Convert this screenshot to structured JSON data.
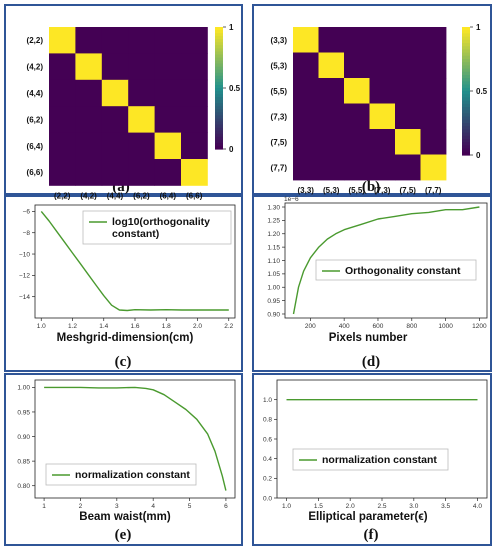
{
  "panel_labels": [
    "(a)",
    "(b)",
    "(c)",
    "(d)",
    "(e)",
    "(f)"
  ],
  "colors": {
    "frame": "#2f5597",
    "line": "#4a9a2f",
    "low": "#440154",
    "high": "#fde725",
    "mid": "#21918c"
  },
  "chart_data": [
    {
      "type": "heatmap",
      "panel": "a",
      "categories": [
        "(2,2)",
        "(4,2)",
        "(4,4)",
        "(6,2)",
        "(6,4)",
        "(6,6)"
      ],
      "values": [
        [
          1,
          0,
          0,
          0,
          0,
          0
        ],
        [
          0,
          1,
          0,
          0,
          0,
          0
        ],
        [
          0,
          0,
          1,
          0,
          0,
          0
        ],
        [
          0,
          0,
          0,
          1,
          0,
          0
        ],
        [
          0,
          0,
          0,
          0,
          1,
          0
        ],
        [
          0,
          0,
          0,
          0,
          0,
          1
        ]
      ],
      "colorbar_ticks": [
        {
          "v": 1,
          "label": "1"
        },
        {
          "v": 0.5,
          "label": "0.5"
        },
        {
          "v": 0,
          "label": "0"
        }
      ],
      "vmin": 0,
      "vmax": 1
    },
    {
      "type": "heatmap",
      "panel": "b",
      "categories": [
        "(3,3)",
        "(5,3)",
        "(5,5)",
        "(7,3)",
        "(7,5)",
        "(7,7)"
      ],
      "values": [
        [
          1,
          0,
          0,
          0,
          0,
          0
        ],
        [
          0,
          1,
          0,
          0,
          0,
          0
        ],
        [
          0,
          0,
          1,
          0,
          0,
          0
        ],
        [
          0,
          0,
          0,
          1,
          0,
          0
        ],
        [
          0,
          0,
          0,
          0,
          1,
          0
        ],
        [
          0,
          0,
          0,
          0,
          0,
          1
        ]
      ],
      "colorbar_ticks": [
        {
          "v": 1,
          "label": "1"
        },
        {
          "v": 0.5,
          "label": "0.5"
        },
        {
          "v": 0,
          "label": "0"
        }
      ],
      "vmin": 0,
      "vmax": 1
    },
    {
      "type": "line",
      "panel": "c",
      "xlabel": "Meshgrid-dimension(cm)",
      "xlim": [
        0.96,
        2.24
      ],
      "ylim": [
        -16.0,
        -5.4
      ],
      "xticks": [
        {
          "v": 1.0,
          "label": "1.0"
        },
        {
          "v": 1.2,
          "label": "1.2"
        },
        {
          "v": 1.4,
          "label": "1.4"
        },
        {
          "v": 1.6,
          "label": "1.6"
        },
        {
          "v": 1.8,
          "label": "1.8"
        },
        {
          "v": 2.0,
          "label": "2.0"
        },
        {
          "v": 2.2,
          "label": "2.2"
        }
      ],
      "yticks": [
        {
          "v": -6,
          "label": "−6"
        },
        {
          "v": -8,
          "label": "−8"
        },
        {
          "v": -10,
          "label": "−10"
        },
        {
          "v": -12,
          "label": "−12"
        },
        {
          "v": -14,
          "label": "−14"
        }
      ],
      "series": [
        {
          "name": "log10(orthogonality constant)",
          "x": [
            1.0,
            1.05,
            1.1,
            1.15,
            1.2,
            1.25,
            1.3,
            1.35,
            1.4,
            1.45,
            1.5,
            1.55,
            1.6,
            1.7,
            1.8,
            1.9,
            2.0,
            2.1,
            2.2
          ],
          "y": [
            -6.0,
            -6.9,
            -7.9,
            -8.9,
            -9.9,
            -10.9,
            -11.9,
            -12.9,
            -13.9,
            -14.8,
            -15.25,
            -15.3,
            -15.22,
            -15.25,
            -15.22,
            -15.25,
            -15.25,
            -15.25,
            -15.25
          ]
        }
      ],
      "legend": {
        "lines": [
          "log10(orthogonality",
          "constant)"
        ],
        "loc": "upper right"
      }
    },
    {
      "type": "line",
      "panel": "d",
      "xlabel": "Pixels number",
      "offset_label": "1e−6",
      "xlim": [
        50,
        1245
      ],
      "ylim": [
        0.885,
        1.315
      ],
      "xticks": [
        {
          "v": 200,
          "label": "200"
        },
        {
          "v": 400,
          "label": "400"
        },
        {
          "v": 600,
          "label": "600"
        },
        {
          "v": 800,
          "label": "800"
        },
        {
          "v": 1000,
          "label": "1000"
        },
        {
          "v": 1200,
          "label": "1200"
        }
      ],
      "yticks": [
        {
          "v": 0.9,
          "label": "0.90"
        },
        {
          "v": 0.95,
          "label": "0.95"
        },
        {
          "v": 1.0,
          "label": "1.00"
        },
        {
          "v": 1.05,
          "label": "1.05"
        },
        {
          "v": 1.1,
          "label": "1.10"
        },
        {
          "v": 1.15,
          "label": "1.15"
        },
        {
          "v": 1.2,
          "label": "1.20"
        },
        {
          "v": 1.25,
          "label": "1.25"
        },
        {
          "v": 1.3,
          "label": "1.30"
        }
      ],
      "series": [
        {
          "name": "Orthogonality constant",
          "x": [
            100,
            130,
            160,
            200,
            250,
            300,
            350,
            400,
            450,
            500,
            600,
            700,
            800,
            900,
            1000,
            1100,
            1200
          ],
          "y": [
            0.9,
            1.0,
            1.06,
            1.11,
            1.15,
            1.18,
            1.2,
            1.215,
            1.225,
            1.235,
            1.255,
            1.265,
            1.275,
            1.28,
            1.29,
            1.29,
            1.3
          ]
        }
      ],
      "legend": {
        "lines": [
          "Orthogonality constant"
        ],
        "loc": "center right"
      }
    },
    {
      "type": "line",
      "panel": "e",
      "xlabel": "Beam waist(mm)",
      "xlim": [
        0.75,
        6.25
      ],
      "ylim": [
        0.775,
        1.015
      ],
      "xticks": [
        {
          "v": 1,
          "label": "1"
        },
        {
          "v": 2,
          "label": "2"
        },
        {
          "v": 3,
          "label": "3"
        },
        {
          "v": 4,
          "label": "4"
        },
        {
          "v": 5,
          "label": "5"
        },
        {
          "v": 6,
          "label": "6"
        }
      ],
      "yticks": [
        {
          "v": 0.8,
          "label": "0.80"
        },
        {
          "v": 0.85,
          "label": "0.85"
        },
        {
          "v": 0.9,
          "label": "0.90"
        },
        {
          "v": 0.95,
          "label": "0.95"
        },
        {
          "v": 1.0,
          "label": "1.00"
        }
      ],
      "series": [
        {
          "name": "normalization constant",
          "x": [
            1.0,
            1.5,
            2.0,
            2.5,
            3.0,
            3.5,
            3.8,
            4.0,
            4.3,
            4.6,
            4.9,
            5.2,
            5.5,
            5.7,
            5.9,
            6.0
          ],
          "y": [
            1.0,
            1.0,
            1.0,
            0.999,
            0.999,
            1.0,
            0.998,
            0.995,
            0.985,
            0.97,
            0.955,
            0.935,
            0.905,
            0.87,
            0.82,
            0.79
          ]
        }
      ],
      "legend": {
        "lines": [
          "normalization constant"
        ],
        "loc": "lower center"
      }
    },
    {
      "type": "line",
      "panel": "f",
      "xlabel": "Elliptical parameter(ϵ)",
      "xlim": [
        0.85,
        4.15
      ],
      "ylim": [
        0.0,
        1.2
      ],
      "xticks": [
        {
          "v": 1.0,
          "label": "1.0"
        },
        {
          "v": 1.5,
          "label": "1.5"
        },
        {
          "v": 2.0,
          "label": "2.0"
        },
        {
          "v": 2.5,
          "label": "2.5"
        },
        {
          "v": 3.0,
          "label": "3.0"
        },
        {
          "v": 3.5,
          "label": "3.5"
        },
        {
          "v": 4.0,
          "label": "4.0"
        }
      ],
      "yticks": [
        {
          "v": 0.0,
          "label": "0.0"
        },
        {
          "v": 0.2,
          "label": "0.2"
        },
        {
          "v": 0.4,
          "label": "0.4"
        },
        {
          "v": 0.6,
          "label": "0.6"
        },
        {
          "v": 0.8,
          "label": "0.8"
        },
        {
          "v": 1.0,
          "label": "1.0"
        }
      ],
      "series": [
        {
          "name": "normalization constant",
          "x": [
            1.0,
            4.0
          ],
          "y": [
            1.0,
            1.0
          ]
        }
      ],
      "legend": {
        "lines": [
          "normalization constant"
        ],
        "loc": "center"
      }
    }
  ]
}
